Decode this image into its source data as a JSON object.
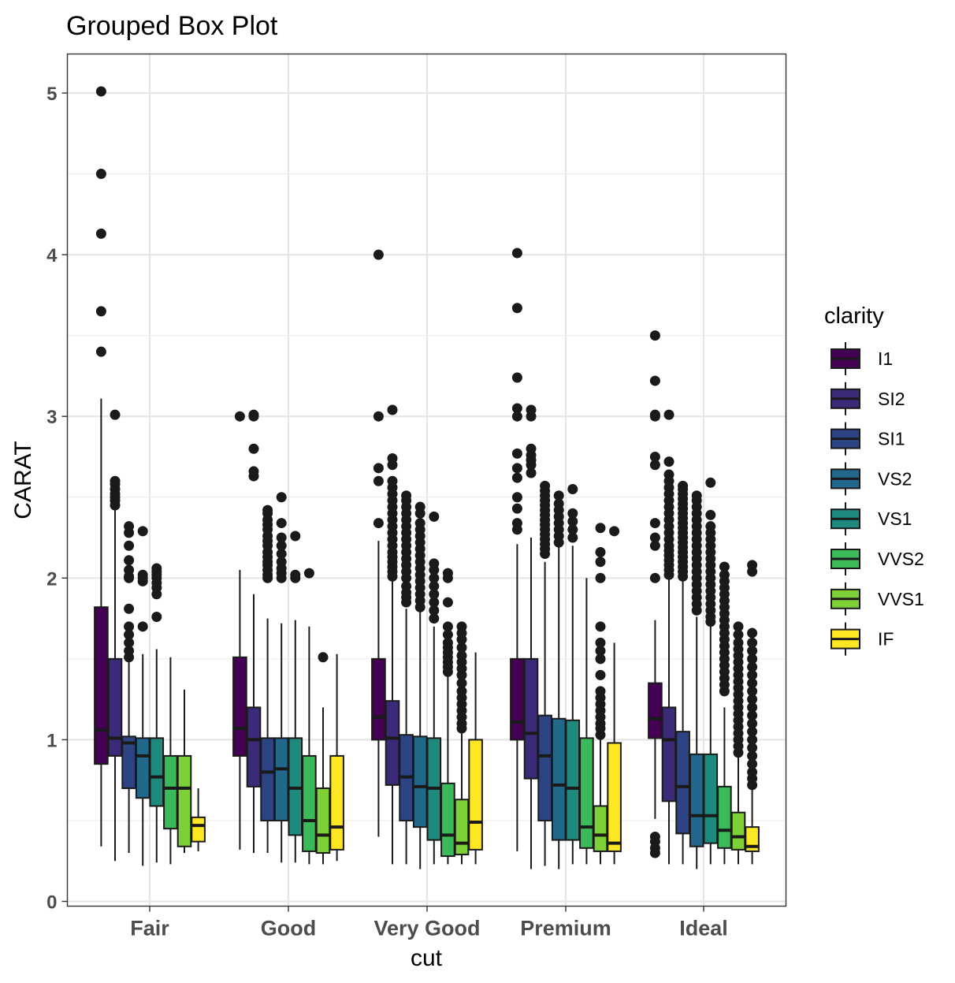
{
  "chart_data": {
    "type": "box",
    "title": "Grouped Box Plot",
    "xlabel": "cut",
    "ylabel": "CARAT",
    "ylim": [
      -0.05,
      5.25
    ],
    "yticks": [
      "0",
      "1",
      "2",
      "3",
      "4",
      "5"
    ],
    "ytick_values": [
      0,
      1,
      2,
      3,
      4,
      5
    ],
    "grid": true,
    "legend_title": "clarity",
    "legend_position": "right",
    "categories": [
      "Fair",
      "Good",
      "Very Good",
      "Premium",
      "Ideal"
    ],
    "groups": [
      "I1",
      "SI2",
      "SI1",
      "VS2",
      "VS1",
      "VVS2",
      "VVS1",
      "IF"
    ],
    "colors": [
      "#440154",
      "#3b2a78",
      "#2c4483",
      "#21688c",
      "#1e8a7e",
      "#3aba58",
      "#7ed037",
      "#fde725"
    ],
    "boxes": [
      [
        {
          "q1": 0.85,
          "med": 1.06,
          "q3": 1.82,
          "lo": 0.34,
          "hi": 3.11,
          "out": [
            3.4,
            3.65,
            4.13,
            4.5,
            5.01
          ]
        },
        {
          "q1": 0.9,
          "med": 1.01,
          "q3": 1.5,
          "lo": 0.25,
          "hi": 2.43,
          "out": [
            2.45,
            2.48,
            2.5,
            2.52,
            2.55,
            2.58,
            2.6,
            3.01
          ]
        },
        {
          "q1": 0.7,
          "med": 0.98,
          "q3": 1.02,
          "lo": 0.3,
          "hi": 1.5,
          "out": [
            1.51,
            1.55,
            1.6,
            1.65,
            1.7,
            1.81,
            2.0,
            2.01,
            2.05,
            2.11,
            2.2,
            2.28,
            2.32
          ]
        },
        {
          "q1": 0.64,
          "med": 0.9,
          "q3": 1.01,
          "lo": 0.22,
          "hi": 1.53,
          "out": [
            1.7,
            1.98,
            2.0,
            2.02,
            2.29
          ]
        },
        {
          "q1": 0.59,
          "med": 0.77,
          "q3": 1.01,
          "lo": 0.24,
          "hi": 1.56,
          "out": [
            1.76,
            1.9,
            1.94,
            1.97,
            2.0,
            2.02,
            2.04,
            2.06
          ]
        },
        {
          "q1": 0.45,
          "med": 0.7,
          "q3": 0.9,
          "lo": 0.23,
          "hi": 1.51,
          "out": []
        },
        {
          "q1": 0.34,
          "med": 0.7,
          "q3": 0.9,
          "lo": 0.3,
          "hi": 1.31,
          "out": []
        },
        {
          "q1": 0.37,
          "med": 0.47,
          "q3": 0.52,
          "lo": 0.31,
          "hi": 0.7,
          "out": []
        }
      ],
      [
        {
          "q1": 0.9,
          "med": 1.07,
          "q3": 1.51,
          "lo": 0.32,
          "hi": 2.05,
          "out": [
            3.0
          ]
        },
        {
          "q1": 0.71,
          "med": 1.0,
          "q3": 1.2,
          "lo": 0.3,
          "hi": 1.9,
          "out": [
            2.63,
            2.66,
            2.8,
            3.0,
            3.01
          ]
        },
        {
          "q1": 0.5,
          "med": 0.8,
          "q3": 1.01,
          "lo": 0.3,
          "hi": 1.75,
          "out": [
            2.0,
            2.02,
            2.05,
            2.08,
            2.1,
            2.13,
            2.16,
            2.2,
            2.23,
            2.26,
            2.3,
            2.33,
            2.36,
            2.4,
            2.42
          ]
        },
        {
          "q1": 0.5,
          "med": 0.82,
          "q3": 1.01,
          "lo": 0.24,
          "hi": 1.72,
          "out": [
            2.0,
            2.03,
            2.06,
            2.1,
            2.15,
            2.2,
            2.25,
            2.34,
            2.5
          ]
        },
        {
          "q1": 0.41,
          "med": 0.7,
          "q3": 1.01,
          "lo": 0.24,
          "hi": 1.74,
          "out": [
            2.0,
            2.02,
            2.26
          ]
        },
        {
          "q1": 0.31,
          "med": 0.5,
          "q3": 0.9,
          "lo": 0.23,
          "hi": 1.7,
          "out": [
            2.03
          ]
        },
        {
          "q1": 0.3,
          "med": 0.41,
          "q3": 0.7,
          "lo": 0.23,
          "hi": 1.2,
          "out": [
            1.51
          ]
        },
        {
          "q1": 0.32,
          "med": 0.46,
          "q3": 0.9,
          "lo": 0.25,
          "hi": 1.53,
          "out": []
        }
      ],
      [
        {
          "q1": 1.0,
          "med": 1.14,
          "q3": 1.5,
          "lo": 0.4,
          "hi": 2.23,
          "out": [
            2.34,
            2.6,
            2.68,
            3.0,
            4.0
          ]
        },
        {
          "q1": 0.72,
          "med": 1.01,
          "q3": 1.24,
          "lo": 0.23,
          "hi": 2.0,
          "out": [
            2.01,
            2.04,
            2.07,
            2.1,
            2.13,
            2.16,
            2.2,
            2.24,
            2.28,
            2.32,
            2.36,
            2.4,
            2.44,
            2.48,
            2.52,
            2.56,
            2.6,
            2.7,
            2.74,
            3.04
          ]
        },
        {
          "q1": 0.5,
          "med": 0.77,
          "q3": 1.03,
          "lo": 0.23,
          "hi": 1.81,
          "out": [
            1.85,
            1.88,
            1.91,
            1.95,
            2.0,
            2.04,
            2.08,
            2.12,
            2.16,
            2.2,
            2.24,
            2.28,
            2.32,
            2.36,
            2.4,
            2.44,
            2.48,
            2.51
          ]
        },
        {
          "q1": 0.46,
          "med": 0.71,
          "q3": 1.02,
          "lo": 0.2,
          "hi": 1.8,
          "out": [
            1.82,
            1.86,
            1.9,
            1.94,
            1.98,
            2.02,
            2.06,
            2.1,
            2.14,
            2.18,
            2.22,
            2.26,
            2.3,
            2.34,
            2.4,
            2.44
          ]
        },
        {
          "q1": 0.38,
          "med": 0.7,
          "q3": 1.01,
          "lo": 0.23,
          "hi": 1.7,
          "out": [
            1.75,
            1.8,
            1.85,
            1.9,
            1.95,
            2.0,
            2.05,
            2.09,
            2.38
          ]
        },
        {
          "q1": 0.28,
          "med": 0.41,
          "q3": 0.73,
          "lo": 0.23,
          "hi": 1.4,
          "out": [
            1.42,
            1.45,
            1.48,
            1.51,
            1.54,
            1.57,
            1.6,
            1.65,
            1.7,
            1.85,
            2.0,
            2.03
          ]
        },
        {
          "q1": 0.29,
          "med": 0.36,
          "q3": 0.63,
          "lo": 0.23,
          "hi": 1.05,
          "out": [
            1.07,
            1.1,
            1.14,
            1.18,
            1.22,
            1.26,
            1.3,
            1.35,
            1.4,
            1.44,
            1.48,
            1.52,
            1.57,
            1.62,
            1.66,
            1.7
          ]
        },
        {
          "q1": 0.32,
          "med": 0.49,
          "q3": 1.0,
          "lo": 0.23,
          "hi": 1.54,
          "out": []
        }
      ],
      [
        {
          "q1": 1.0,
          "med": 1.11,
          "q3": 1.5,
          "lo": 0.31,
          "hi": 2.21,
          "out": [
            2.3,
            2.34,
            2.43,
            2.5,
            2.62,
            2.68,
            2.77,
            3.0,
            3.05,
            3.24,
            3.67,
            4.01
          ]
        },
        {
          "q1": 0.76,
          "med": 1.04,
          "q3": 1.5,
          "lo": 0.2,
          "hi": 2.25,
          "out": [
            2.65,
            2.7,
            2.73,
            2.76,
            2.8,
            3.0,
            3.04
          ]
        },
        {
          "q1": 0.5,
          "med": 0.9,
          "q3": 1.15,
          "lo": 0.22,
          "hi": 2.1,
          "out": [
            2.15,
            2.18,
            2.21,
            2.24,
            2.27,
            2.3,
            2.33,
            2.36,
            2.39,
            2.42,
            2.45,
            2.48,
            2.51,
            2.54,
            2.57
          ]
        },
        {
          "q1": 0.38,
          "med": 0.72,
          "q3": 1.13,
          "lo": 0.2,
          "hi": 2.2,
          "out": [
            2.22,
            2.26,
            2.3,
            2.34,
            2.38,
            2.42,
            2.46,
            2.51
          ]
        },
        {
          "q1": 0.38,
          "med": 0.7,
          "q3": 1.12,
          "lo": 0.23,
          "hi": 2.2,
          "out": [
            2.25,
            2.3,
            2.35,
            2.4,
            2.55
          ]
        },
        {
          "q1": 0.33,
          "med": 0.46,
          "q3": 1.01,
          "lo": 0.23,
          "hi": 2.0,
          "out": []
        },
        {
          "q1": 0.31,
          "med": 0.41,
          "q3": 0.59,
          "lo": 0.23,
          "hi": 1.0,
          "out": [
            1.03,
            1.07,
            1.1,
            1.14,
            1.18,
            1.22,
            1.26,
            1.3,
            1.4,
            1.5,
            1.55,
            1.6,
            1.7,
            2.0,
            2.1,
            2.16,
            2.31
          ]
        },
        {
          "q1": 0.31,
          "med": 0.36,
          "q3": 0.98,
          "lo": 0.23,
          "hi": 1.6,
          "out": [
            2.29
          ]
        }
      ],
      [
        {
          "q1": 1.01,
          "med": 1.13,
          "q3": 1.35,
          "lo": 0.51,
          "hi": 1.74,
          "out": [
            0.3,
            0.33,
            0.37,
            0.4,
            2.0,
            2.2,
            2.25,
            2.34,
            2.7,
            2.75,
            3.0,
            3.01,
            3.22,
            3.5
          ]
        },
        {
          "q1": 0.62,
          "med": 1.0,
          "q3": 1.2,
          "lo": 0.23,
          "hi": 1.99,
          "out": [
            2.02,
            2.05,
            2.08,
            2.11,
            2.14,
            2.17,
            2.2,
            2.24,
            2.28,
            2.32,
            2.36,
            2.4,
            2.44,
            2.48,
            2.52,
            2.56,
            2.6,
            2.64,
            2.72,
            3.01
          ]
        },
        {
          "q1": 0.42,
          "med": 0.71,
          "q3": 1.05,
          "lo": 0.23,
          "hi": 1.99,
          "out": [
            2.01,
            2.04,
            2.07,
            2.1,
            2.13,
            2.16,
            2.19,
            2.22,
            2.25,
            2.28,
            2.31,
            2.34,
            2.37,
            2.4,
            2.43,
            2.46,
            2.49,
            2.52,
            2.55,
            2.57
          ]
        },
        {
          "q1": 0.34,
          "med": 0.53,
          "q3": 0.91,
          "lo": 0.2,
          "hi": 1.76,
          "out": [
            1.8,
            1.84,
            1.88,
            1.92,
            1.96,
            2.0,
            2.04,
            2.08,
            2.12,
            2.16,
            2.2,
            2.24,
            2.28,
            2.32,
            2.36,
            2.4,
            2.44,
            2.48,
            2.51
          ]
        },
        {
          "q1": 0.36,
          "med": 0.53,
          "q3": 0.91,
          "lo": 0.23,
          "hi": 1.71,
          "out": [
            1.73,
            1.76,
            1.8,
            1.84,
            1.88,
            1.92,
            1.96,
            2.0,
            2.04,
            2.08,
            2.12,
            2.16,
            2.2,
            2.24,
            2.28,
            2.32,
            2.39,
            2.59
          ]
        },
        {
          "q1": 0.33,
          "med": 0.44,
          "q3": 0.71,
          "lo": 0.23,
          "hi": 1.2,
          "out": [
            1.3,
            1.34,
            1.38,
            1.42,
            1.46,
            1.5,
            1.54,
            1.58,
            1.62,
            1.66,
            1.7,
            1.74,
            1.78,
            1.82,
            1.86,
            1.9,
            1.94,
            1.98,
            2.02,
            2.07
          ]
        },
        {
          "q1": 0.32,
          "med": 0.4,
          "q3": 0.55,
          "lo": 0.23,
          "hi": 0.9,
          "out": [
            0.92,
            0.96,
            1.0,
            1.04,
            1.08,
            1.12,
            1.16,
            1.2,
            1.24,
            1.28,
            1.32,
            1.36,
            1.4,
            1.44,
            1.48,
            1.52,
            1.56,
            1.6,
            1.65,
            1.7
          ]
        },
        {
          "q1": 0.31,
          "med": 0.34,
          "q3": 0.46,
          "lo": 0.23,
          "hi": 0.7,
          "out": [
            0.72,
            0.76,
            0.8,
            0.85,
            0.9,
            0.95,
            1.0,
            1.05,
            1.1,
            1.15,
            1.2,
            1.25,
            1.3,
            1.35,
            1.4,
            1.45,
            1.5,
            1.55,
            1.6,
            1.66,
            2.04,
            2.08
          ]
        }
      ]
    ]
  }
}
